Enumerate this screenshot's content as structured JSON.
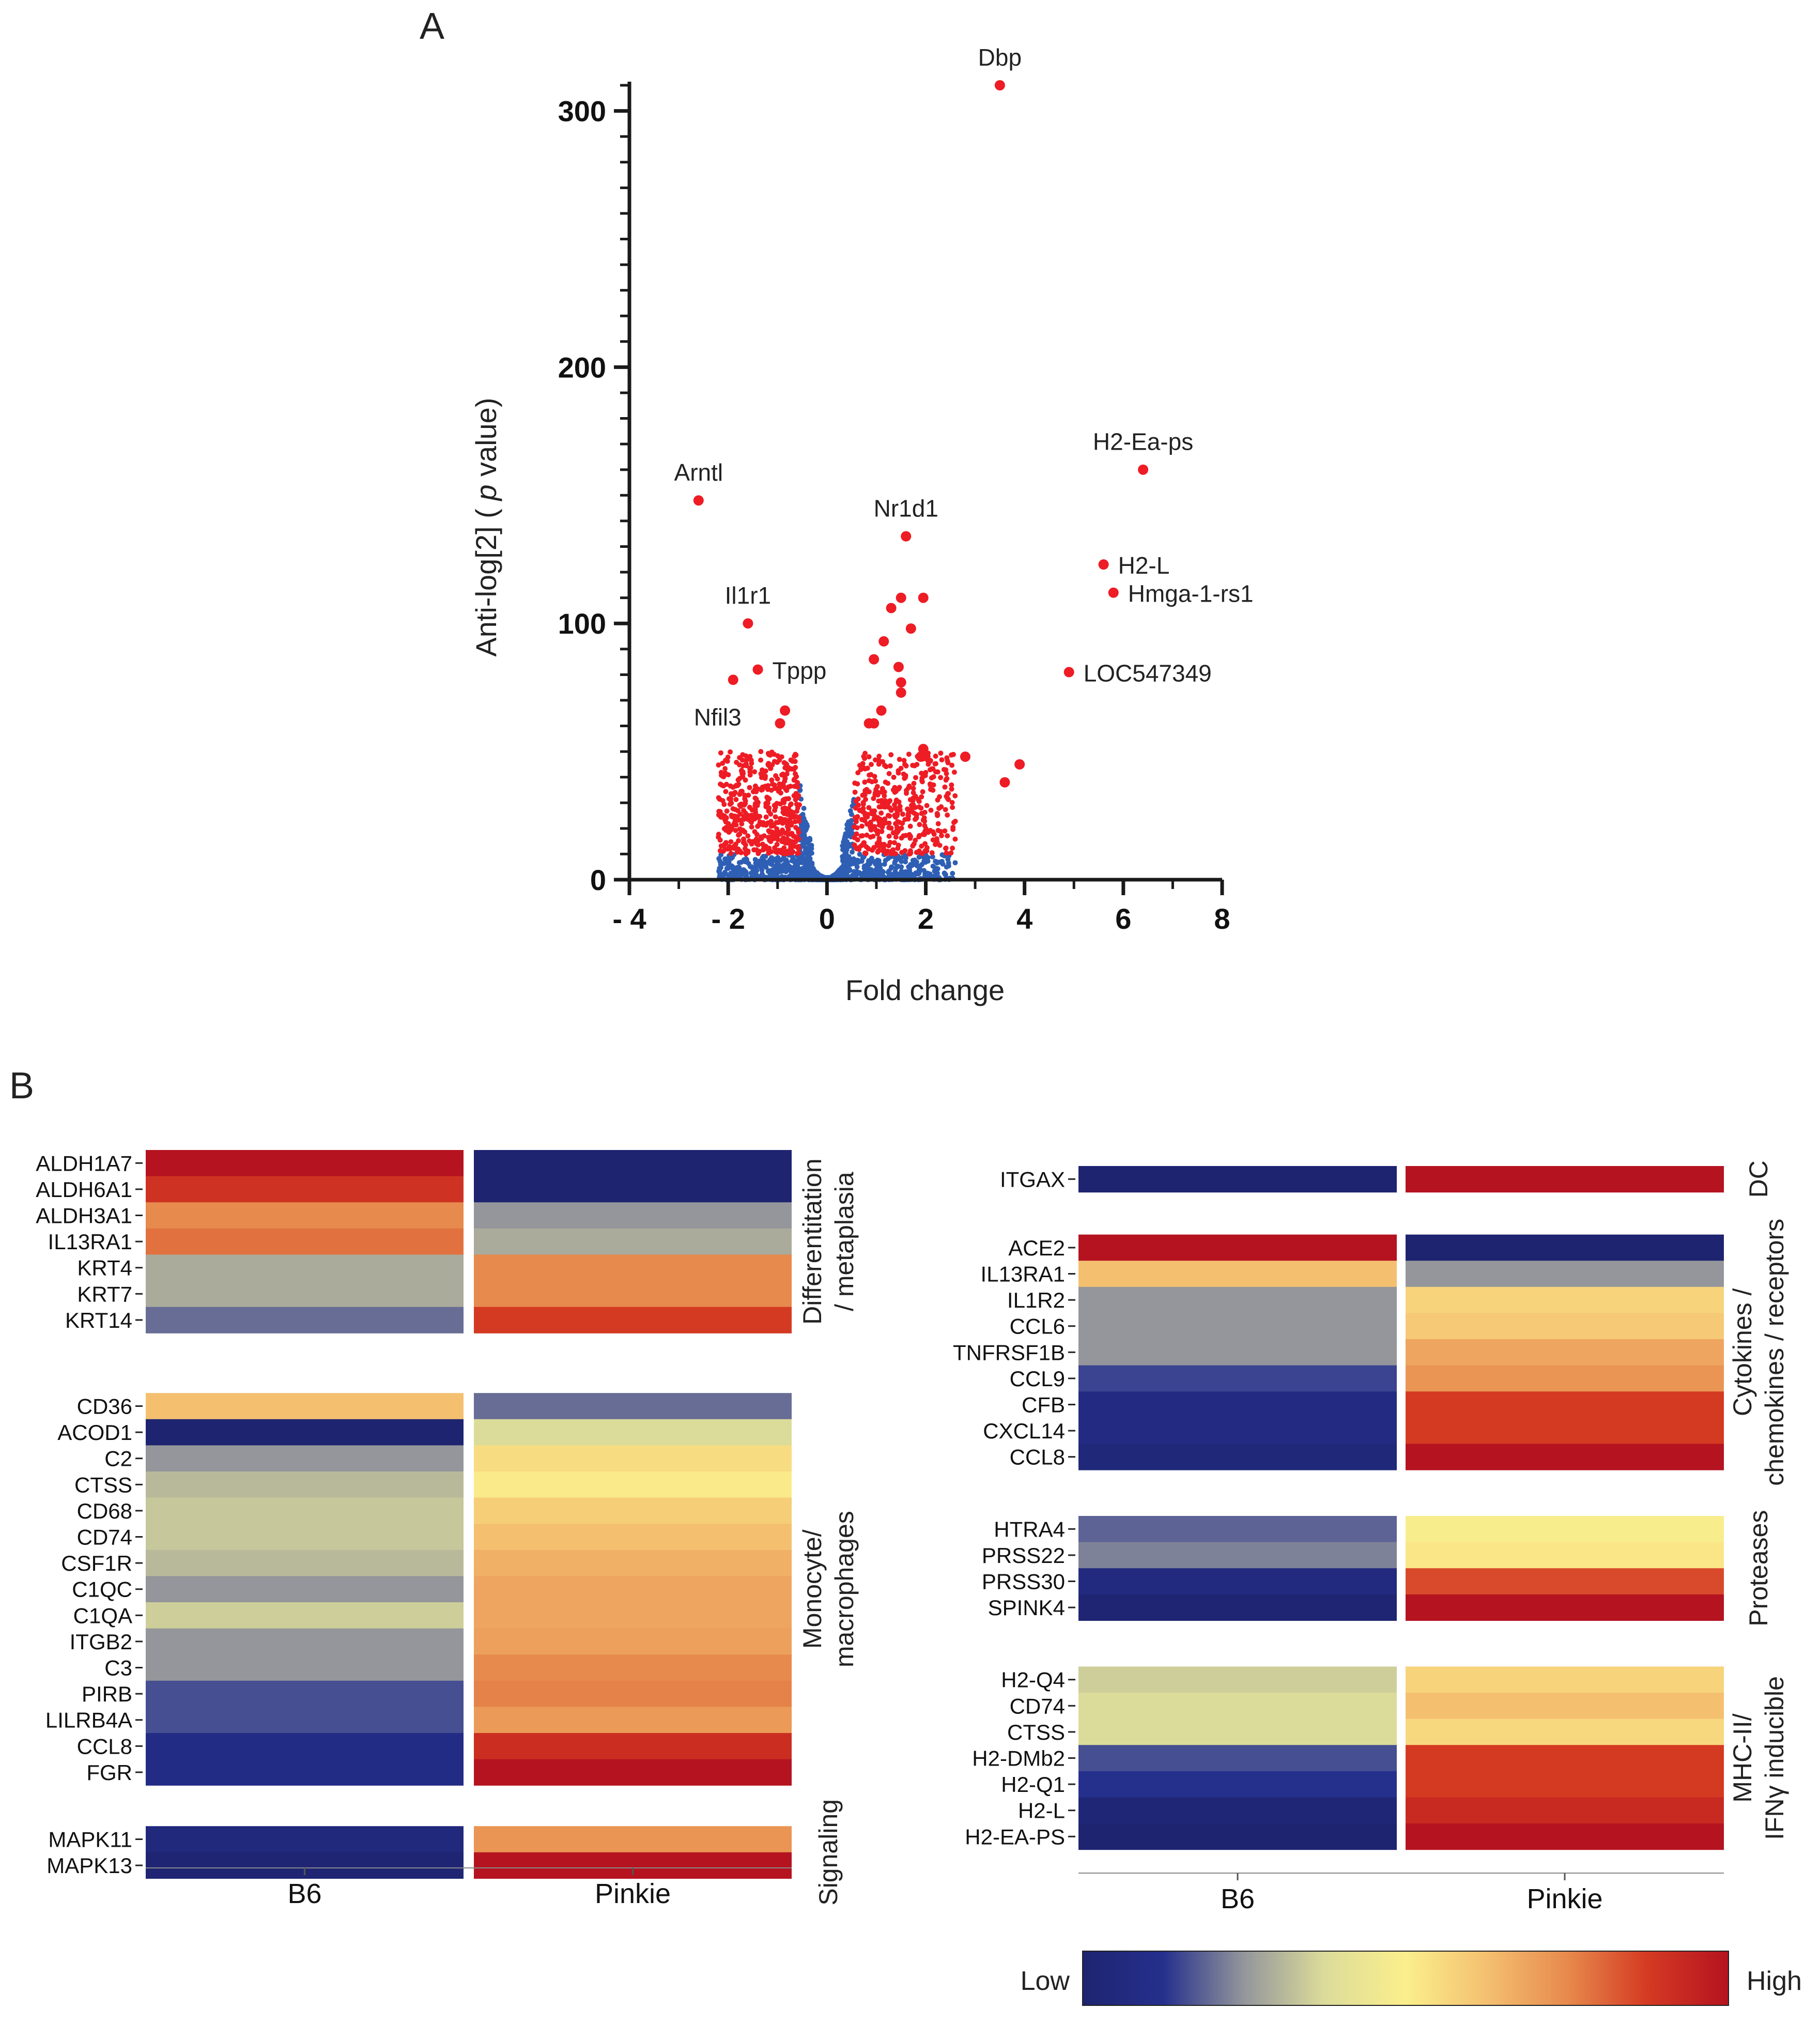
{
  "panel_labels": [
    "A",
    "B"
  ],
  "colors": {
    "significant": "#ee1c25",
    "nonsignificant": "#2e5fb5",
    "axis": "#1a1a1a",
    "scale": [
      "#1e2470",
      "#25308d",
      "#94969b",
      "#dcdc9a",
      "#fbef8c",
      "#f4c070",
      "#e78a4d",
      "#d43a22",
      "#b51320"
    ]
  },
  "chart_data": [
    {
      "type": "scatter",
      "panel": "A",
      "title": "",
      "xlabel": "Fold change",
      "ylabel_prefix": "Anti-log[2] ( ",
      "ylabel_italic": "p",
      "ylabel_suffix": " value)",
      "xlim": [
        -4,
        8
      ],
      "ylim": [
        0,
        310
      ],
      "xticks": [
        -4,
        -2,
        0,
        2,
        4,
        6,
        8
      ],
      "xtick_labels": [
        "- 4",
        "- 2",
        "0",
        "2",
        "4",
        "6",
        "8"
      ],
      "yticks": [
        0,
        100,
        200,
        300
      ],
      "ytick_labels": [
        "0",
        "100",
        "200",
        "300"
      ],
      "grid": false,
      "labeled_points": [
        {
          "label": "Dbp",
          "x": 3.5,
          "y": 310
        },
        {
          "label": "Arntl",
          "x": -2.6,
          "y": 148
        },
        {
          "label": "H2-Ea-ps",
          "x": 6.4,
          "y": 160
        },
        {
          "label": "Nr1d1",
          "x": 1.6,
          "y": 134
        },
        {
          "label": "H2-L",
          "x": 5.6,
          "y": 123
        },
        {
          "label": "Hmga-1-rs1",
          "x": 5.8,
          "y": 112
        },
        {
          "label": "Il1r1",
          "x": -1.6,
          "y": 100
        },
        {
          "label": "Tppp",
          "x": -1.4,
          "y": 82
        },
        {
          "label": "LOC547349",
          "x": 4.9,
          "y": 81
        },
        {
          "label": "Nfil3",
          "x": -1.9,
          "y": 78
        }
      ],
      "other_points": [
        {
          "x": -0.85,
          "y": 66
        },
        {
          "x": -0.95,
          "y": 61
        },
        {
          "x": 1.3,
          "y": 106
        },
        {
          "x": 1.5,
          "y": 110
        },
        {
          "x": 1.95,
          "y": 110
        },
        {
          "x": 1.7,
          "y": 98
        },
        {
          "x": 1.15,
          "y": 93
        },
        {
          "x": 0.95,
          "y": 86
        },
        {
          "x": 1.45,
          "y": 83
        },
        {
          "x": 1.5,
          "y": 77
        },
        {
          "x": 1.5,
          "y": 73
        },
        {
          "x": 1.1,
          "y": 66
        },
        {
          "x": 0.85,
          "y": 61
        },
        {
          "x": 0.95,
          "y": 61
        },
        {
          "x": 1.95,
          "y": 51
        },
        {
          "x": 1.9,
          "y": 48
        },
        {
          "x": 2.8,
          "y": 48
        },
        {
          "x": 3.9,
          "y": 45
        },
        {
          "x": 3.6,
          "y": 38
        }
      ],
      "cloud": {
        "seed": 7,
        "count": 2400,
        "significance_threshold_y": 10
      }
    },
    {
      "type": "heatmap",
      "panel": "B-left",
      "columns": [
        "B6",
        "Pinkie"
      ],
      "groups": [
        {
          "label_lines": [
            "Differentitation",
            "/ metaplasia"
          ],
          "rows": [
            {
              "gene": "ALDH1A7",
              "values": [
                8.0,
                0.0
              ]
            },
            {
              "gene": "ALDH6A1",
              "values": [
                7.2,
                0.0
              ]
            },
            {
              "gene": "ALDH3A1",
              "values": [
                6.0,
                2.0
              ]
            },
            {
              "gene": "IL13RA1",
              "values": [
                6.3,
                2.3
              ]
            },
            {
              "gene": "KRT4",
              "values": [
                2.3,
                6.0
              ]
            },
            {
              "gene": "KRT7",
              "values": [
                2.3,
                6.0
              ]
            },
            {
              "gene": "KRT14",
              "values": [
                1.6,
                7.0
              ]
            }
          ]
        },
        {
          "label_lines": [
            "Monocyte/",
            "macrophages"
          ],
          "rows": [
            {
              "gene": "CD36",
              "values": [
                5.0,
                1.6
              ]
            },
            {
              "gene": "ACOD1",
              "values": [
                0.0,
                3.0
              ]
            },
            {
              "gene": "C2",
              "values": [
                2.0,
                4.4
              ]
            },
            {
              "gene": "CTSS",
              "values": [
                2.5,
                4.1
              ]
            },
            {
              "gene": "CD68",
              "values": [
                2.7,
                4.7
              ]
            },
            {
              "gene": "CD74",
              "values": [
                2.7,
                5.0
              ]
            },
            {
              "gene": "CSF1R",
              "values": [
                2.5,
                5.3
              ]
            },
            {
              "gene": "C1QC",
              "values": [
                2.0,
                5.5
              ]
            },
            {
              "gene": "C1QA",
              "values": [
                2.8,
                5.5
              ]
            },
            {
              "gene": "ITGB2",
              "values": [
                2.0,
                5.6
              ]
            },
            {
              "gene": "C3",
              "values": [
                2.0,
                6.0
              ]
            },
            {
              "gene": "PIRB",
              "values": [
                1.3,
                6.1
              ]
            },
            {
              "gene": "LILRB4A",
              "values": [
                1.3,
                5.7
              ]
            },
            {
              "gene": "CCL8",
              "values": [
                0.7,
                7.3
              ]
            },
            {
              "gene": "FGR",
              "values": [
                0.7,
                8.0
              ]
            }
          ]
        },
        {
          "label_lines": [
            "Signaling"
          ],
          "rows": [
            {
              "gene": "MAPK11",
              "values": [
                0.4,
                5.8
              ]
            },
            {
              "gene": "MAPK13",
              "values": [
                0.1,
                8.0
              ]
            }
          ]
        }
      ]
    },
    {
      "type": "heatmap",
      "panel": "B-right",
      "columns": [
        "B6",
        "Pinkie"
      ],
      "groups": [
        {
          "label_lines": [
            "DC"
          ],
          "rows": [
            {
              "gene": "ITGAX",
              "values": [
                0.0,
                8.0
              ]
            }
          ]
        },
        {
          "label_lines": [
            "Cytokines /",
            "chemokines / receptors"
          ],
          "rows": [
            {
              "gene": "ACE2",
              "values": [
                8.0,
                0.0
              ]
            },
            {
              "gene": "IL13RA1",
              "values": [
                5.0,
                2.0
              ]
            },
            {
              "gene": "IL1R2",
              "values": [
                2.0,
                4.6
              ]
            },
            {
              "gene": "CCL6",
              "values": [
                2.0,
                4.8
              ]
            },
            {
              "gene": "TNFRSF1B",
              "values": [
                2.0,
                5.5
              ]
            },
            {
              "gene": "CCL9",
              "values": [
                1.2,
                5.8
              ]
            },
            {
              "gene": "CFB",
              "values": [
                0.6,
                7.0
              ]
            },
            {
              "gene": "CXCL14",
              "values": [
                0.6,
                7.0
              ]
            },
            {
              "gene": "CCL8",
              "values": [
                0.3,
                8.0
              ]
            }
          ]
        },
        {
          "label_lines": [
            "Proteases"
          ],
          "rows": [
            {
              "gene": "HTRA4",
              "values": [
                1.5,
                3.9
              ]
            },
            {
              "gene": "PRSS22",
              "values": [
                1.8,
                4.2
              ]
            },
            {
              "gene": "PRSS30",
              "values": [
                0.5,
                6.8
              ]
            },
            {
              "gene": "SPINK4",
              "values": [
                0.1,
                8.0
              ]
            }
          ]
        },
        {
          "label_lines": [
            "MHC-II/",
            "IFNγ inducible"
          ],
          "rows": [
            {
              "gene": "H2-Q4",
              "values": [
                2.8,
                4.6
              ]
            },
            {
              "gene": "CD74",
              "values": [
                3.0,
                5.0
              ]
            },
            {
              "gene": "CTSS",
              "values": [
                3.0,
                4.5
              ]
            },
            {
              "gene": "H2-DMb2",
              "values": [
                1.3,
                7.0
              ]
            },
            {
              "gene": "H2-Q1",
              "values": [
                1.0,
                7.0
              ]
            },
            {
              "gene": "H2-L",
              "values": [
                0.2,
                7.4
              ]
            },
            {
              "gene": "H2-EA-PS",
              "values": [
                0.0,
                8.0
              ]
            }
          ]
        }
      ]
    },
    {
      "type": "colorbar",
      "low_label": "Low",
      "high_label": "High",
      "range": [
        0,
        8
      ]
    }
  ]
}
